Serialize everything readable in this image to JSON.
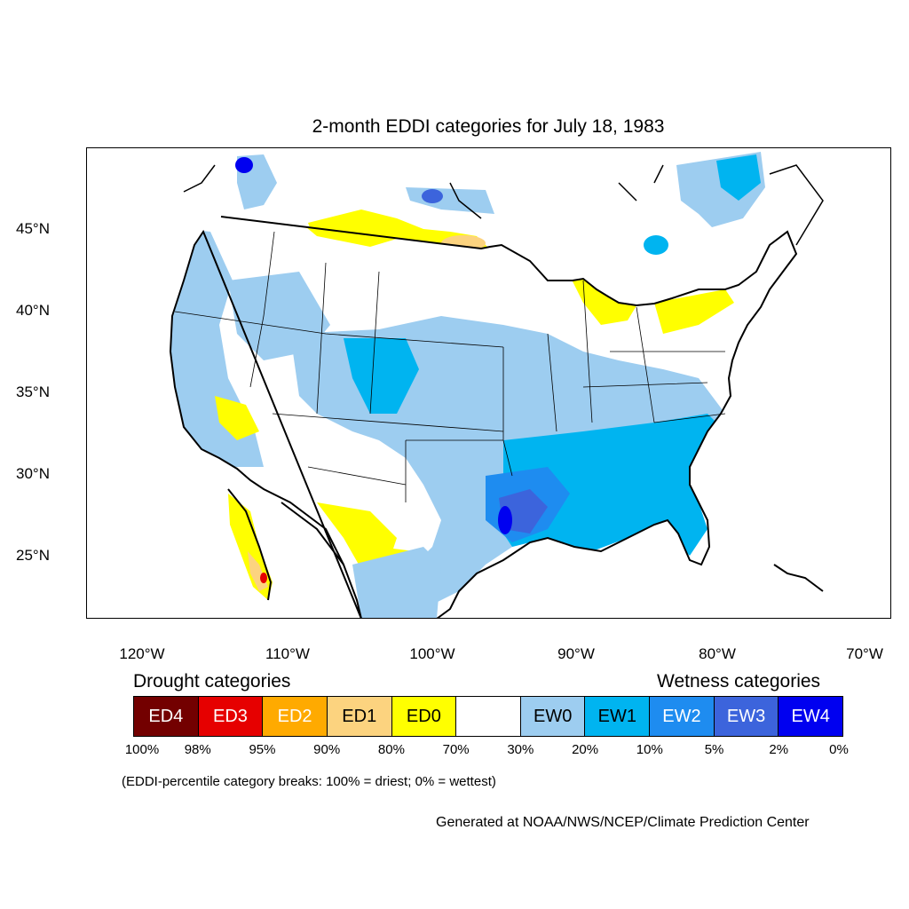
{
  "title": "2-month EDDI categories for July 18, 1983",
  "map": {
    "lat_labels": [
      "45°N",
      "40°N",
      "35°N",
      "30°N",
      "25°N"
    ],
    "lon_labels": [
      "120°W",
      "110°W",
      "100°W",
      "90°W",
      "80°W",
      "70°W"
    ]
  },
  "legend": {
    "drought_heading": "Drought categories",
    "wetness_heading": "Wetness categories",
    "categories": [
      {
        "label": "ED4",
        "color": "#730000",
        "text_color": "#ffffff"
      },
      {
        "label": "ED3",
        "color": "#e60000",
        "text_color": "#ffffff"
      },
      {
        "label": "ED2",
        "color": "#ffaa00",
        "text_color": "#ffffff"
      },
      {
        "label": "ED1",
        "color": "#fcd37f",
        "text_color": "#000000"
      },
      {
        "label": "ED0",
        "color": "#ffff00",
        "text_color": "#000000"
      },
      {
        "label": "",
        "color": "#ffffff",
        "text_color": "#000000"
      },
      {
        "label": "EW0",
        "color": "#9dcdf0",
        "text_color": "#000000"
      },
      {
        "label": "EW1",
        "color": "#00b4f0",
        "text_color": "#000000"
      },
      {
        "label": "EW2",
        "color": "#1e8cf0",
        "text_color": "#ffffff"
      },
      {
        "label": "EW3",
        "color": "#3c64dc",
        "text_color": "#ffffff"
      },
      {
        "label": "EW4",
        "color": "#0000f0",
        "text_color": "#ffffff"
      }
    ],
    "breaks": [
      "100%",
      "98%",
      "95%",
      "90%",
      "80%",
      "70%",
      "30%",
      "20%",
      "10%",
      "5%",
      "2%",
      "0%"
    ]
  },
  "note": "(EDDI-percentile category breaks: 100% = driest; 0% = wettest)",
  "credit": "Generated at NOAA/NWS/NCEP/Climate Prediction Center"
}
